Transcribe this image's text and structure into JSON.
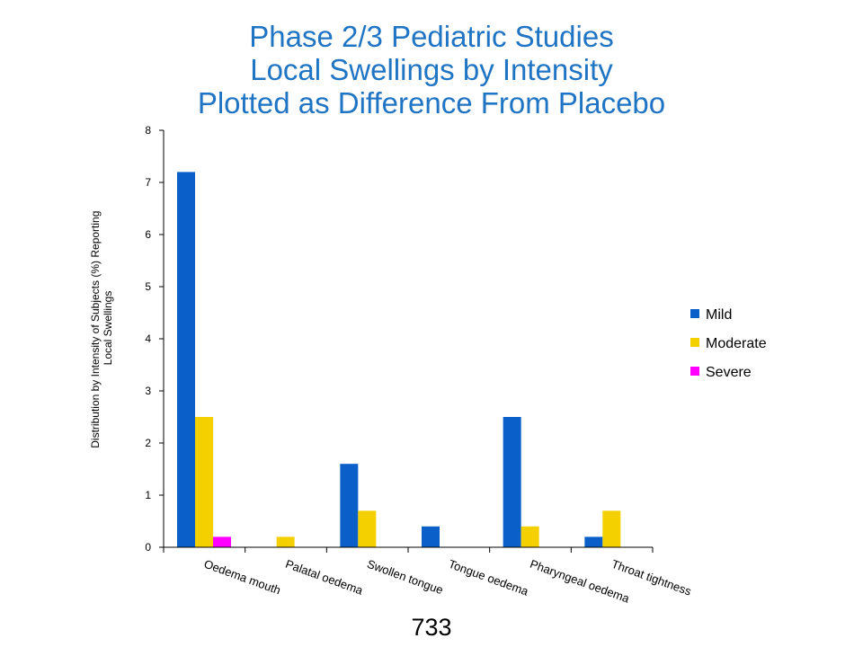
{
  "slide": {
    "title_lines": [
      "Phase 2/3 Pediatric Studies",
      "Local Swellings by Intensity",
      "Plotted as Difference From Placebo"
    ],
    "page_number": "733"
  },
  "chart_data": {
    "type": "bar",
    "title": "",
    "xlabel": "",
    "ylabel_lines": [
      "Distribution by Intensity of Subjects (%) Reporting",
      "Local Swellings"
    ],
    "ylim": [
      0,
      8
    ],
    "yticks": [
      0,
      1,
      2,
      3,
      4,
      5,
      6,
      7,
      8
    ],
    "grid": false,
    "legend_position": "right",
    "categories": [
      "Oedema mouth",
      "Palatal oedema",
      "Swollen tongue",
      "Tongue oedema",
      "Pharyngeal oedema",
      "Throat tightness"
    ],
    "series": [
      {
        "name": "Mild",
        "color": "#0a5fc8",
        "values": [
          7.2,
          0,
          1.6,
          0.4,
          2.5,
          0.2
        ]
      },
      {
        "name": "Moderate",
        "color": "#f5d000",
        "values": [
          2.5,
          0.2,
          0.7,
          0,
          0.4,
          0.7
        ]
      },
      {
        "name": "Severe",
        "color": "#ff00ff",
        "values": [
          0.2,
          0,
          0,
          0,
          0,
          0
        ]
      }
    ]
  }
}
